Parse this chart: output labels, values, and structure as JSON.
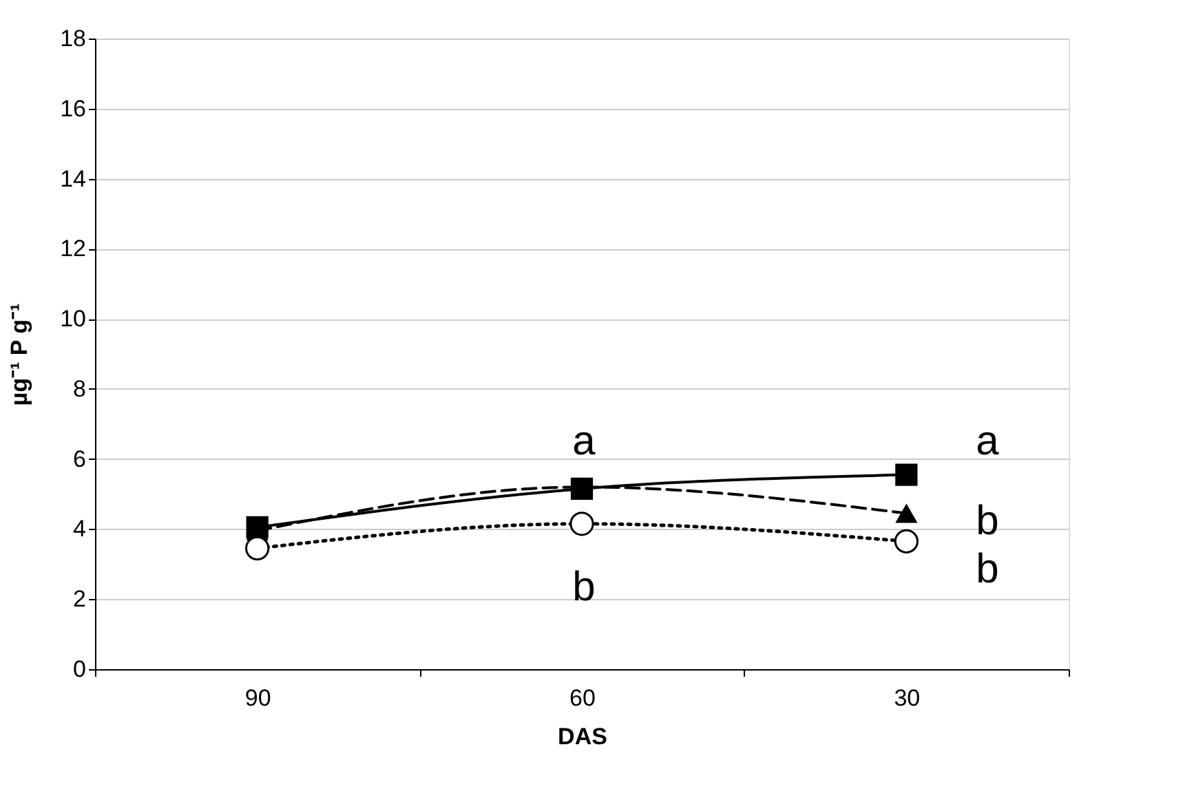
{
  "chart_data": {
    "type": "line",
    "xlabel": "DAS",
    "ylabel": "µg⁻¹ P g⁻¹",
    "categories": [
      "90",
      "60",
      "30"
    ],
    "series": [
      {
        "color": "#000000",
        "values": [
          4.05,
          5.15,
          5.55
        ],
        "marker": "square",
        "line_style": "solid"
      },
      {
        "color": "#000000",
        "values": [
          3.95,
          5.2,
          4.45
        ],
        "marker": "triangle",
        "line_style": "dashed"
      },
      {
        "color": "#000000",
        "values": [
          3.45,
          4.15,
          3.65
        ],
        "marker": "circle",
        "line_style": "dotted"
      }
    ],
    "annotations": [
      "a",
      "b",
      "a",
      "b",
      "b"
    ],
    "ylim": [
      0,
      18
    ],
    "yticks": [
      0,
      2,
      4,
      6,
      8,
      10,
      12,
      14,
      16,
      18
    ],
    "grid": "y"
  }
}
